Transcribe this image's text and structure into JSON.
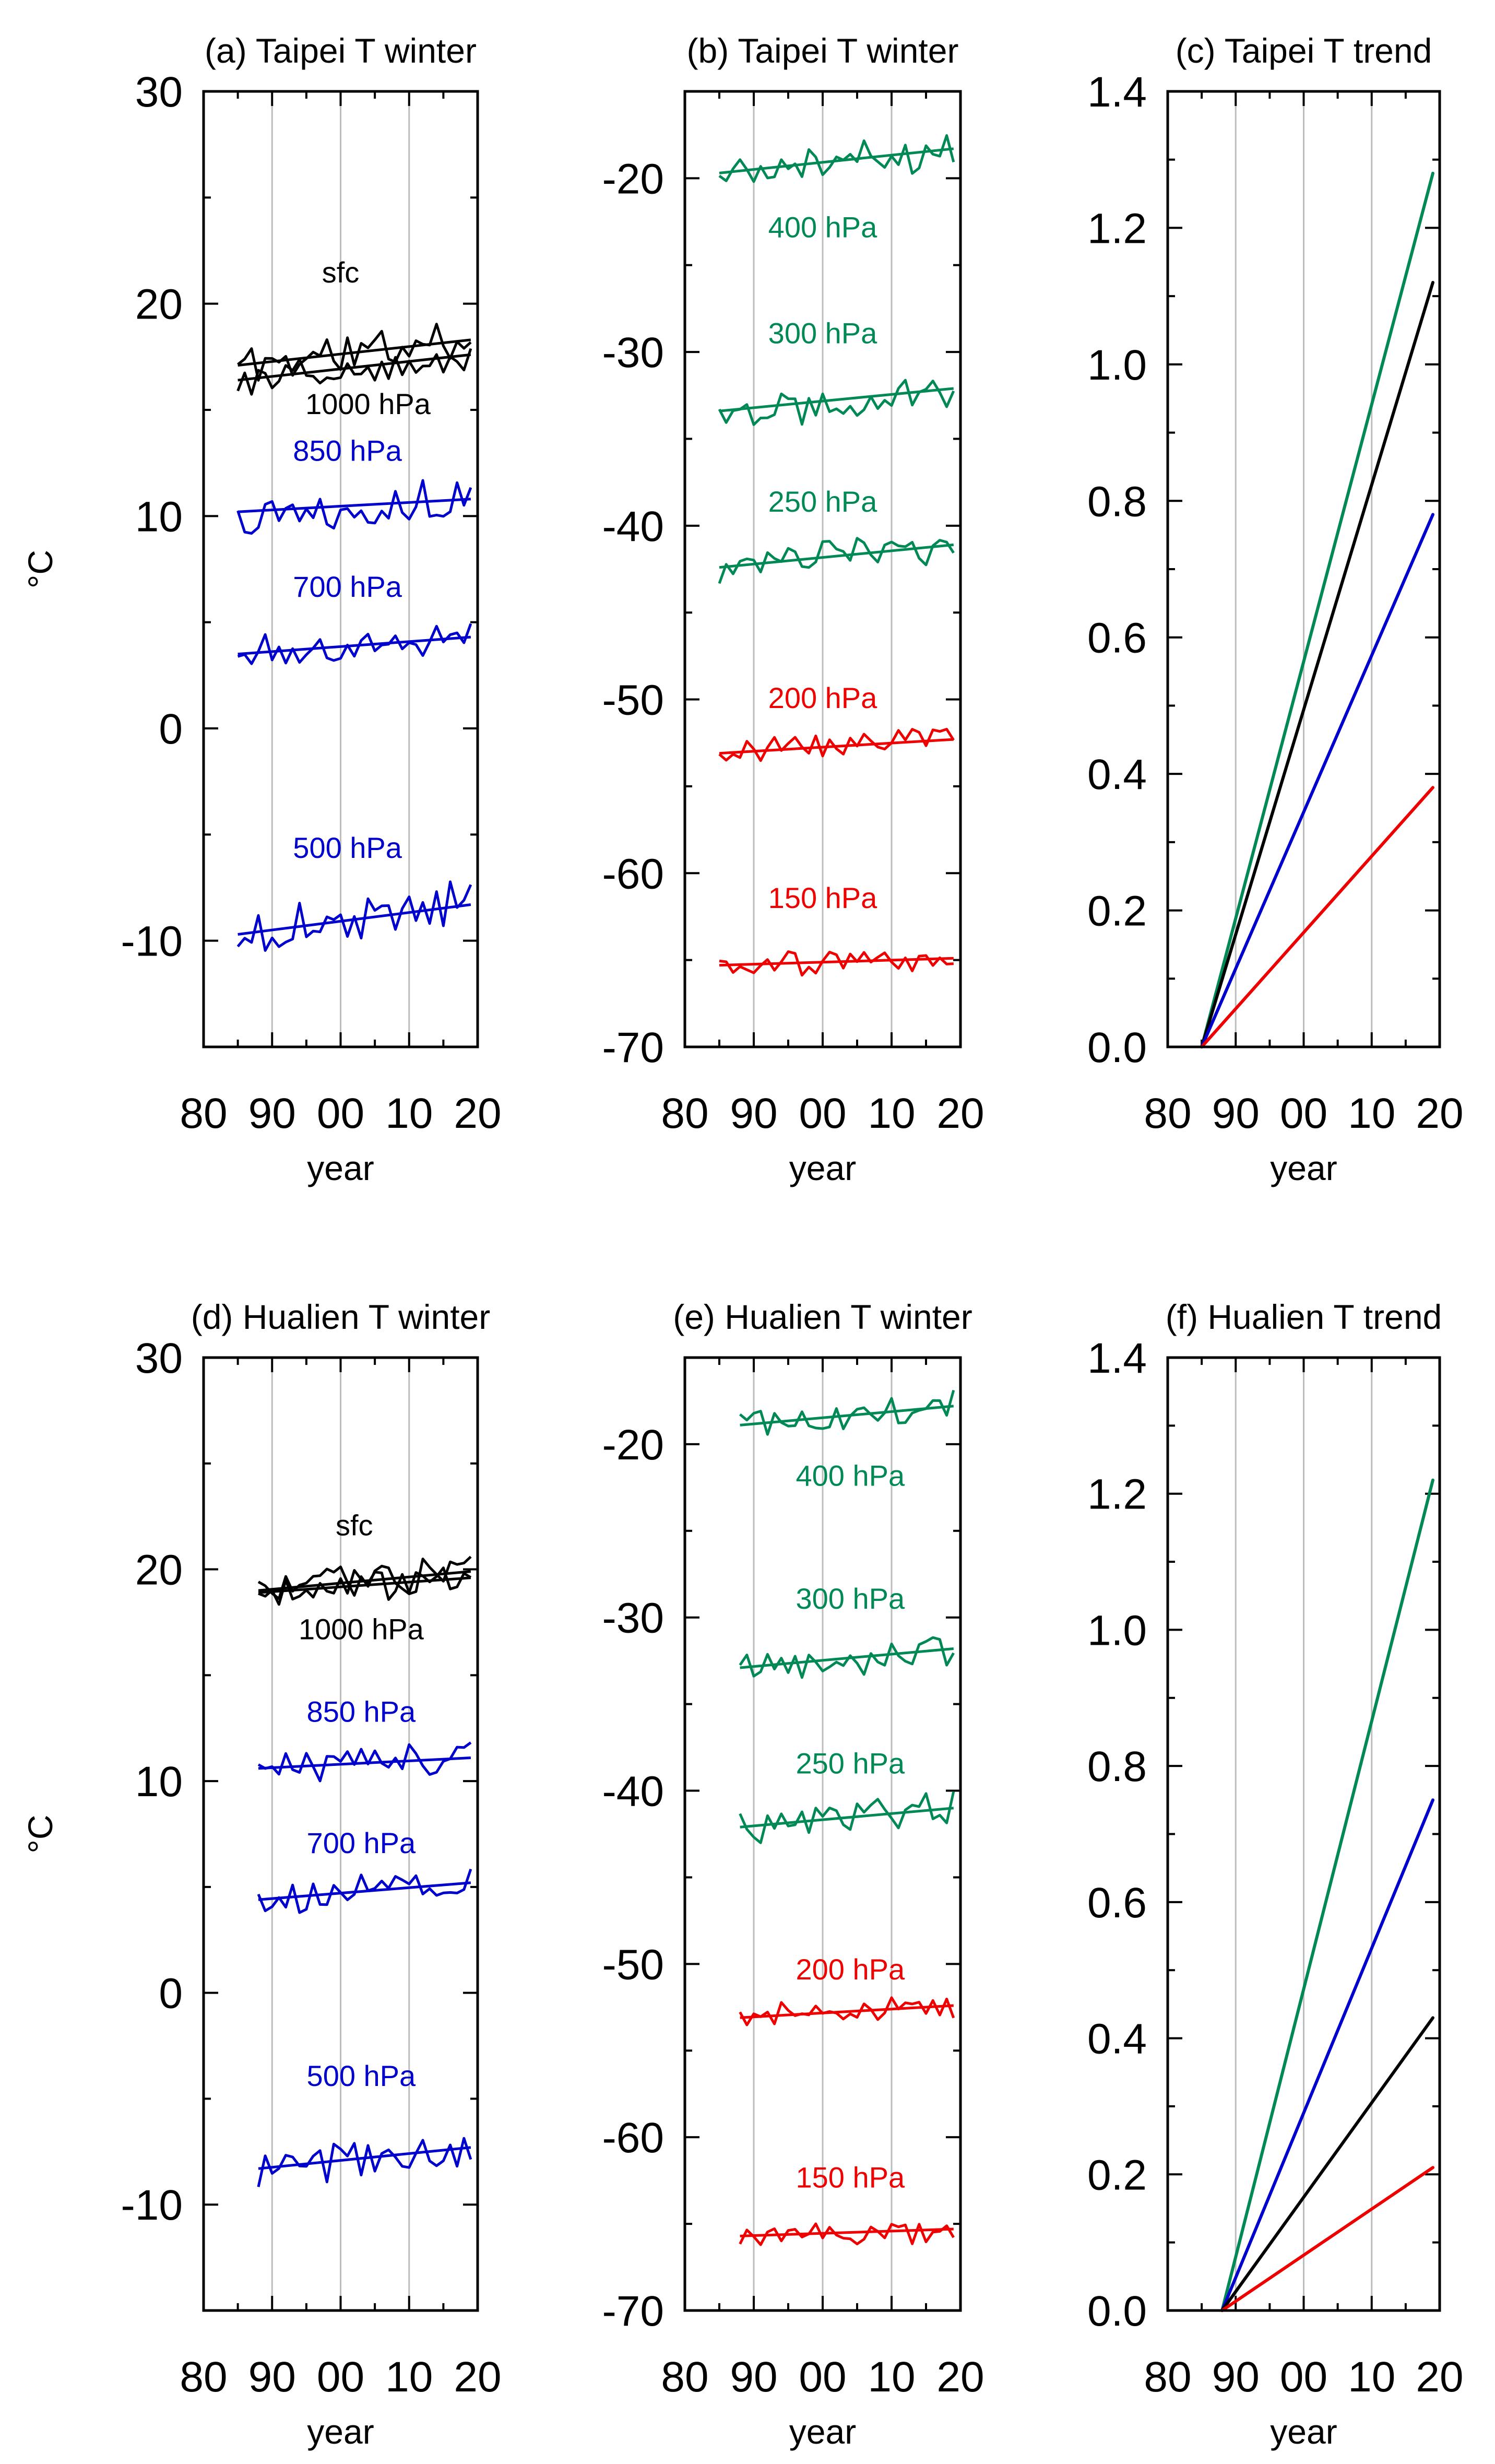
{
  "figure": {
    "background": "#ffffff"
  },
  "chart_data": [
    {
      "id": "a",
      "type": "line",
      "title": "(a) Taipei T winter",
      "xlabel": "year",
      "ylabel": "°C",
      "xlim": [
        1980,
        2020
      ],
      "ylim": [
        -15,
        30
      ],
      "xtick_values": [
        1980,
        1990,
        2000,
        2010,
        2020
      ],
      "xtick_labels": [
        "80",
        "90",
        "00",
        "10",
        "20"
      ],
      "ytick_values": [
        -10,
        0,
        10,
        20,
        30
      ],
      "ytick_labels": [
        "-10",
        "0",
        "10",
        "20",
        "30"
      ],
      "grid_x": [
        1990,
        2000,
        2010
      ],
      "series": [
        {
          "name": "sfc",
          "color": "#000000",
          "label_year": 2000,
          "label_value": 21.0,
          "mean": 17.6,
          "amp": 0.9,
          "trend": [
            17.1,
            18.3
          ],
          "seed": 11
        },
        {
          "name": "1000 hPa",
          "color": "#000000",
          "label_year": 2004,
          "label_value": 14.8,
          "mean": 16.9,
          "amp": 0.7,
          "trend": [
            16.4,
            17.6
          ],
          "seed": 12
        },
        {
          "name": "850 hPa",
          "color": "#0000cc",
          "label_year": 2001,
          "label_value": 12.6,
          "mean": 10.5,
          "amp": 0.8,
          "trend": [
            10.2,
            10.8
          ],
          "seed": 13
        },
        {
          "name": "700 hPa",
          "color": "#0000cc",
          "label_year": 2001,
          "label_value": 6.2,
          "mean": 3.9,
          "amp": 0.7,
          "trend": [
            3.5,
            4.3
          ],
          "seed": 14
        },
        {
          "name": "500 hPa",
          "color": "#0000cc",
          "label_year": 2001,
          "label_value": -6.1,
          "mean": -9.0,
          "amp": 0.9,
          "trend": [
            -9.7,
            -8.3
          ],
          "seed": 15
        }
      ]
    },
    {
      "id": "b",
      "type": "line",
      "title": "(b) Taipei T winter",
      "xlabel": "year",
      "ylabel": "",
      "xlim": [
        1980,
        2020
      ],
      "ylim": [
        -70,
        -15
      ],
      "xtick_values": [
        1980,
        1990,
        2000,
        2010,
        2020
      ],
      "xtick_labels": [
        "80",
        "90",
        "00",
        "10",
        "20"
      ],
      "ytick_values": [
        -70,
        -60,
        -50,
        -40,
        -30,
        -20
      ],
      "ytick_labels": [
        "-70",
        "-60",
        "-50",
        "-40",
        "-30",
        "-20"
      ],
      "grid_x": [
        1990,
        2000,
        2010
      ],
      "series": [
        {
          "name": "400 hPa",
          "color": "#008855",
          "label_year": 2000,
          "label_value": -23.4,
          "mean": -18.8,
          "amp": 0.9,
          "trend": [
            -19.7,
            -18.3
          ],
          "seed": 21
        },
        {
          "name": "300 hPa",
          "color": "#008855",
          "label_year": 2000,
          "label_value": -29.5,
          "mean": -32.6,
          "amp": 0.9,
          "trend": [
            -33.4,
            -32.1
          ],
          "seed": 22
        },
        {
          "name": "250 hPa",
          "color": "#008855",
          "label_year": 2000,
          "label_value": -39.2,
          "mean": -41.7,
          "amp": 0.8,
          "trend": [
            -42.4,
            -41.1
          ],
          "seed": 23
        },
        {
          "name": "200 hPa",
          "color": "#ee0000",
          "label_year": 2000,
          "label_value": -50.5,
          "mean": -52.8,
          "amp": 0.6,
          "trend": [
            -53.1,
            -52.3
          ],
          "seed": 24
        },
        {
          "name": "150 hPa",
          "color": "#ee0000",
          "label_year": 2000,
          "label_value": -62.0,
          "mean": -65.1,
          "amp": 0.6,
          "trend": [
            -65.3,
            -64.9
          ],
          "seed": 25
        }
      ]
    },
    {
      "id": "c",
      "type": "line",
      "title": "(c) Taipei T trend",
      "xlabel": "year",
      "ylabel": "",
      "xlim": [
        1980,
        2020
      ],
      "ylim": [
        0.0,
        1.4
      ],
      "xtick_values": [
        1980,
        1990,
        2000,
        2010,
        2020
      ],
      "xtick_labels": [
        "80",
        "90",
        "00",
        "10",
        "20"
      ],
      "ytick_values": [
        0.0,
        0.2,
        0.4,
        0.6,
        0.8,
        1.0,
        1.2,
        1.4
      ],
      "ytick_labels": [
        "0.0",
        "0.2",
        "0.4",
        "0.6",
        "0.8",
        "1.0",
        "1.2",
        "1.4"
      ],
      "grid_x": [
        1990,
        2000,
        2010
      ],
      "series": [
        {
          "name": "green",
          "color": "#008855",
          "x": [
            1985,
            2019
          ],
          "y": [
            0.0,
            1.28
          ]
        },
        {
          "name": "black",
          "color": "#000000",
          "x": [
            1985,
            2019
          ],
          "y": [
            0.0,
            1.12
          ]
        },
        {
          "name": "blue",
          "color": "#0000cc",
          "x": [
            1985,
            2019
          ],
          "y": [
            0.0,
            0.78
          ]
        },
        {
          "name": "red",
          "color": "#ee0000",
          "x": [
            1985,
            2019
          ],
          "y": [
            0.0,
            0.38
          ]
        }
      ]
    },
    {
      "id": "d",
      "type": "line",
      "title": "(d) Hualien T winter",
      "xlabel": "year",
      "ylabel": "°C",
      "xlim": [
        1980,
        2020
      ],
      "ylim": [
        -15,
        30
      ],
      "xtick_values": [
        1980,
        1990,
        2000,
        2010,
        2020
      ],
      "xtick_labels": [
        "80",
        "90",
        "00",
        "10",
        "20"
      ],
      "ytick_values": [
        -10,
        0,
        10,
        20,
        30
      ],
      "ytick_labels": [
        "-10",
        "0",
        "10",
        "20",
        "30"
      ],
      "grid_x": [
        1990,
        2000,
        2010
      ],
      "series": [
        {
          "name": "sfc",
          "color": "#000000",
          "label_year": 2002,
          "label_value": 21.6,
          "mean": 19.4,
          "amp": 0.7,
          "trend": [
            19.0,
            19.9
          ],
          "seed": 31
        },
        {
          "name": "1000 hPa",
          "color": "#000000",
          "label_year": 2003,
          "label_value": 16.7,
          "mean": 19.2,
          "amp": 0.6,
          "trend": [
            18.9,
            19.6
          ],
          "seed": 32
        },
        {
          "name": "850 hPa",
          "color": "#0000cc",
          "label_year": 2003,
          "label_value": 12.8,
          "mean": 10.9,
          "amp": 0.7,
          "trend": [
            10.6,
            11.1
          ],
          "seed": 33
        },
        {
          "name": "700 hPa",
          "color": "#0000cc",
          "label_year": 2003,
          "label_value": 6.6,
          "mean": 4.8,
          "amp": 0.6,
          "trend": [
            4.4,
            5.2
          ],
          "seed": 34
        },
        {
          "name": "500 hPa",
          "color": "#0000cc",
          "label_year": 2003,
          "label_value": -4.4,
          "mean": -7.8,
          "amp": 0.8,
          "trend": [
            -8.3,
            -7.3
          ],
          "seed": 35
        }
      ]
    },
    {
      "id": "e",
      "type": "line",
      "title": "(e) Hualien T winter",
      "xlabel": "year",
      "ylabel": "",
      "xlim": [
        1980,
        2020
      ],
      "ylim": [
        -70,
        -15
      ],
      "xtick_values": [
        1980,
        1990,
        2000,
        2010,
        2020
      ],
      "xtick_labels": [
        "80",
        "90",
        "00",
        "10",
        "20"
      ],
      "ytick_values": [
        -70,
        -60,
        -50,
        -40,
        -30,
        -20
      ],
      "ytick_labels": [
        "-70",
        "-60",
        "-50",
        "-40",
        "-30",
        "-20"
      ],
      "grid_x": [
        1990,
        2000,
        2010
      ],
      "series": [
        {
          "name": "400 hPa",
          "color": "#008855",
          "label_year": 2004,
          "label_value": -22.4,
          "mean": -18.3,
          "amp": 0.8,
          "trend": [
            -18.9,
            -17.8
          ],
          "seed": 41
        },
        {
          "name": "300 hPa",
          "color": "#008855",
          "label_year": 2004,
          "label_value": -29.5,
          "mean": -32.4,
          "amp": 0.8,
          "trend": [
            -32.9,
            -31.8
          ],
          "seed": 42
        },
        {
          "name": "250 hPa",
          "color": "#008855",
          "label_year": 2004,
          "label_value": -39.0,
          "mean": -41.6,
          "amp": 0.8,
          "trend": [
            -42.1,
            -41.0
          ],
          "seed": 43
        },
        {
          "name": "200 hPa",
          "color": "#ee0000",
          "label_year": 2004,
          "label_value": -50.9,
          "mean": -52.8,
          "amp": 0.6,
          "trend": [
            -53.1,
            -52.4
          ],
          "seed": 44
        },
        {
          "name": "150 hPa",
          "color": "#ee0000",
          "label_year": 2004,
          "label_value": -62.9,
          "mean": -65.4,
          "amp": 0.6,
          "trend": [
            -65.7,
            -65.3
          ],
          "seed": 45
        }
      ]
    },
    {
      "id": "f",
      "type": "line",
      "title": "(f) Hualien T trend",
      "xlabel": "year",
      "ylabel": "",
      "xlim": [
        1980,
        2020
      ],
      "ylim": [
        0.0,
        1.4
      ],
      "xtick_values": [
        1980,
        1990,
        2000,
        2010,
        2020
      ],
      "xtick_labels": [
        "80",
        "90",
        "00",
        "10",
        "20"
      ],
      "ytick_values": [
        0.0,
        0.2,
        0.4,
        0.6,
        0.8,
        1.0,
        1.2,
        1.4
      ],
      "ytick_labels": [
        "0.0",
        "0.2",
        "0.4",
        "0.6",
        "0.8",
        "1.0",
        "1.2",
        "1.4"
      ],
      "grid_x": [
        1990,
        2000,
        2010
      ],
      "series": [
        {
          "name": "green",
          "color": "#008855",
          "x": [
            1988,
            2019
          ],
          "y": [
            0.0,
            1.22
          ]
        },
        {
          "name": "blue",
          "color": "#0000cc",
          "x": [
            1988,
            2019
          ],
          "y": [
            0.0,
            0.75
          ]
        },
        {
          "name": "black",
          "color": "#000000",
          "x": [
            1988,
            2019
          ],
          "y": [
            0.0,
            0.43
          ]
        },
        {
          "name": "red",
          "color": "#ee0000",
          "x": [
            1988,
            2019
          ],
          "y": [
            0.0,
            0.21
          ]
        }
      ]
    }
  ]
}
